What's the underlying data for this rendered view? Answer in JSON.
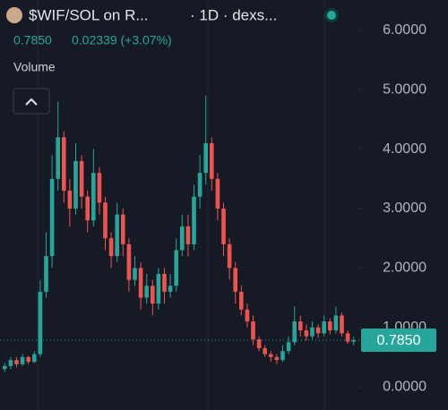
{
  "header": {
    "title": "$WIF/SOL on R...",
    "interval": "· 1D · dexs...",
    "price": "0.7850",
    "change": "0.02339 (+3.07%)",
    "volume_label": "Volume"
  },
  "chart_data": {
    "type": "candlestick",
    "open": [
      0.3,
      0.35,
      0.45,
      0.38,
      0.5,
      0.42,
      0.55,
      1.6,
      2.2,
      3.5,
      4.2,
      3.3,
      3.0,
      3.8,
      3.2,
      2.8,
      3.6,
      3.1,
      2.5,
      2.2,
      2.9,
      2.4,
      1.8,
      2.0,
      1.5,
      1.7,
      1.4,
      1.9,
      1.6,
      1.7,
      2.3,
      2.7,
      2.4,
      3.2,
      3.6,
      4.1,
      3.5,
      3.0,
      2.4,
      2.0,
      1.6,
      1.3,
      1.1,
      0.8,
      0.65,
      0.55,
      0.5,
      0.45,
      0.6,
      0.75,
      1.1,
      0.95,
      0.85,
      1.0,
      0.9,
      1.1,
      0.95,
      1.2,
      0.9,
      0.76
    ],
    "high": [
      0.4,
      0.5,
      0.5,
      0.55,
      0.52,
      0.6,
      1.8,
      2.6,
      3.9,
      4.8,
      4.3,
      3.5,
      4.1,
      3.9,
      3.3,
      4.0,
      3.7,
      3.2,
      2.6,
      3.1,
      3.0,
      2.5,
      2.2,
      2.1,
      1.9,
      1.8,
      2.0,
      2.0,
      1.9,
      2.5,
      2.9,
      2.9,
      3.4,
      3.9,
      4.9,
      4.2,
      3.6,
      3.1,
      2.5,
      2.1,
      1.7,
      1.4,
      1.2,
      0.85,
      0.7,
      0.6,
      0.55,
      0.7,
      0.85,
      1.35,
      1.2,
      1.05,
      1.1,
      1.05,
      1.2,
      1.15,
      1.35,
      1.25,
      0.95,
      0.85
    ],
    "low": [
      0.25,
      0.3,
      0.33,
      0.35,
      0.38,
      0.4,
      0.5,
      1.5,
      2.0,
      3.3,
      3.1,
      2.7,
      2.9,
      3.0,
      2.6,
      2.7,
      2.9,
      2.3,
      2.0,
      2.1,
      2.2,
      1.6,
      1.7,
      1.3,
      1.4,
      1.2,
      1.3,
      1.4,
      1.5,
      1.6,
      2.2,
      2.2,
      2.3,
      3.0,
      3.4,
      3.3,
      2.8,
      2.2,
      1.8,
      1.4,
      1.2,
      1.0,
      0.7,
      0.6,
      0.5,
      0.42,
      0.38,
      0.42,
      0.55,
      0.7,
      0.85,
      0.78,
      0.8,
      0.82,
      0.85,
      0.88,
      0.9,
      0.85,
      0.72,
      0.7
    ],
    "close": [
      0.35,
      0.45,
      0.38,
      0.5,
      0.42,
      0.55,
      1.6,
      2.2,
      3.5,
      4.2,
      3.3,
      3.0,
      3.8,
      3.2,
      2.8,
      3.6,
      3.1,
      2.5,
      2.2,
      2.9,
      2.4,
      1.8,
      2.0,
      1.5,
      1.7,
      1.4,
      1.9,
      1.6,
      1.7,
      2.3,
      2.7,
      2.4,
      3.2,
      3.6,
      4.1,
      3.5,
      3.0,
      2.4,
      2.0,
      1.6,
      1.3,
      1.1,
      0.8,
      0.65,
      0.55,
      0.5,
      0.45,
      0.6,
      0.75,
      1.1,
      0.95,
      0.85,
      1.0,
      0.9,
      1.1,
      0.95,
      1.2,
      0.9,
      0.76,
      0.785
    ],
    "up_color": "#26a69a",
    "down_color": "#ef5350",
    "ylim": [
      -0.39,
      6.51
    ],
    "yticks": [
      {
        "value": 0,
        "label": "0.0000"
      },
      {
        "value": 1,
        "label": "1.0000"
      },
      {
        "value": 2,
        "label": "2.0000"
      },
      {
        "value": 3,
        "label": "3.0000"
      },
      {
        "value": 4,
        "label": "4.0000"
      },
      {
        "value": 5,
        "label": "5.0000"
      },
      {
        "value": 6,
        "label": "6.0000"
      }
    ],
    "last_price": {
      "value": 0.785,
      "label": "0.7850"
    }
  }
}
